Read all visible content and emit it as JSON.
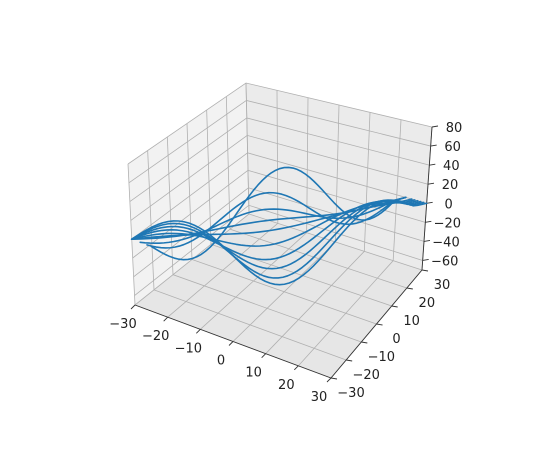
{
  "chart_data": {
    "type": "line",
    "projection": "3d",
    "title": "",
    "xlabel": "",
    "ylabel": "",
    "zlabel": "",
    "xlim": [
      -30,
      30
    ],
    "ylim": [
      -30,
      30
    ],
    "zlim": [
      -70,
      80
    ],
    "x_ticks": [
      -30,
      -20,
      -10,
      0,
      10,
      20,
      30
    ],
    "y_ticks": [
      -30,
      -20,
      -10,
      0,
      10,
      20,
      30
    ],
    "z_ticks": [
      -60,
      -40,
      -20,
      0,
      20,
      40,
      60,
      80
    ],
    "x_tick_labels": [
      "−30",
      "−20",
      "−10",
      "0",
      "10",
      "20",
      "30"
    ],
    "y_tick_labels": [
      "−30",
      "−20",
      "−10",
      "0",
      "10",
      "20",
      "30"
    ],
    "z_tick_labels": [
      "−60",
      "−40",
      "−20",
      "0",
      "20",
      "40",
      "60",
      "80"
    ],
    "grid": true,
    "line_color": "#1f77b4",
    "pane_color": "#f2f2f2",
    "grid_color": "#b0b0b0",
    "series": [
      {
        "x0": -24.2,
        "y0": -30,
        "x1": 23,
        "y1": 30,
        "amplitude": 65,
        "phase": 0
      },
      {
        "x0": -25.5,
        "y0": -30,
        "x1": 23,
        "y1": 30,
        "amplitude": 40,
        "phase": 0.5
      },
      {
        "x0": -27.5,
        "y0": -30,
        "x1": 23,
        "y1": 30,
        "amplitude": 20,
        "phase": 0.5
      },
      {
        "x0": -30,
        "y0": -30,
        "x1": 23,
        "y1": 30,
        "amplitude": 5,
        "phase": 0.4
      },
      {
        "x0": -30,
        "y0": -30,
        "x1": 25,
        "y1": 30,
        "amplitude": -5,
        "phase": 0.3
      },
      {
        "x0": -30,
        "y0": -30,
        "x1": 26,
        "y1": 30,
        "amplitude": -20,
        "phase": 0.3
      },
      {
        "x0": -30,
        "y0": -30,
        "x1": 27,
        "y1": 30,
        "amplitude": -35,
        "phase": 0.2
      },
      {
        "x0": -30,
        "y0": -30,
        "x1": 28,
        "y1": 30,
        "amplitude": -45,
        "phase": 0.1
      },
      {
        "x0": -30,
        "y0": -30,
        "x1": 29,
        "y1": 30,
        "amplitude": -55,
        "phase": 0.05
      },
      {
        "x0": -30,
        "y0": -30,
        "x1": 30,
        "y1": 30,
        "amplitude": -62,
        "phase": 0
      }
    ]
  }
}
